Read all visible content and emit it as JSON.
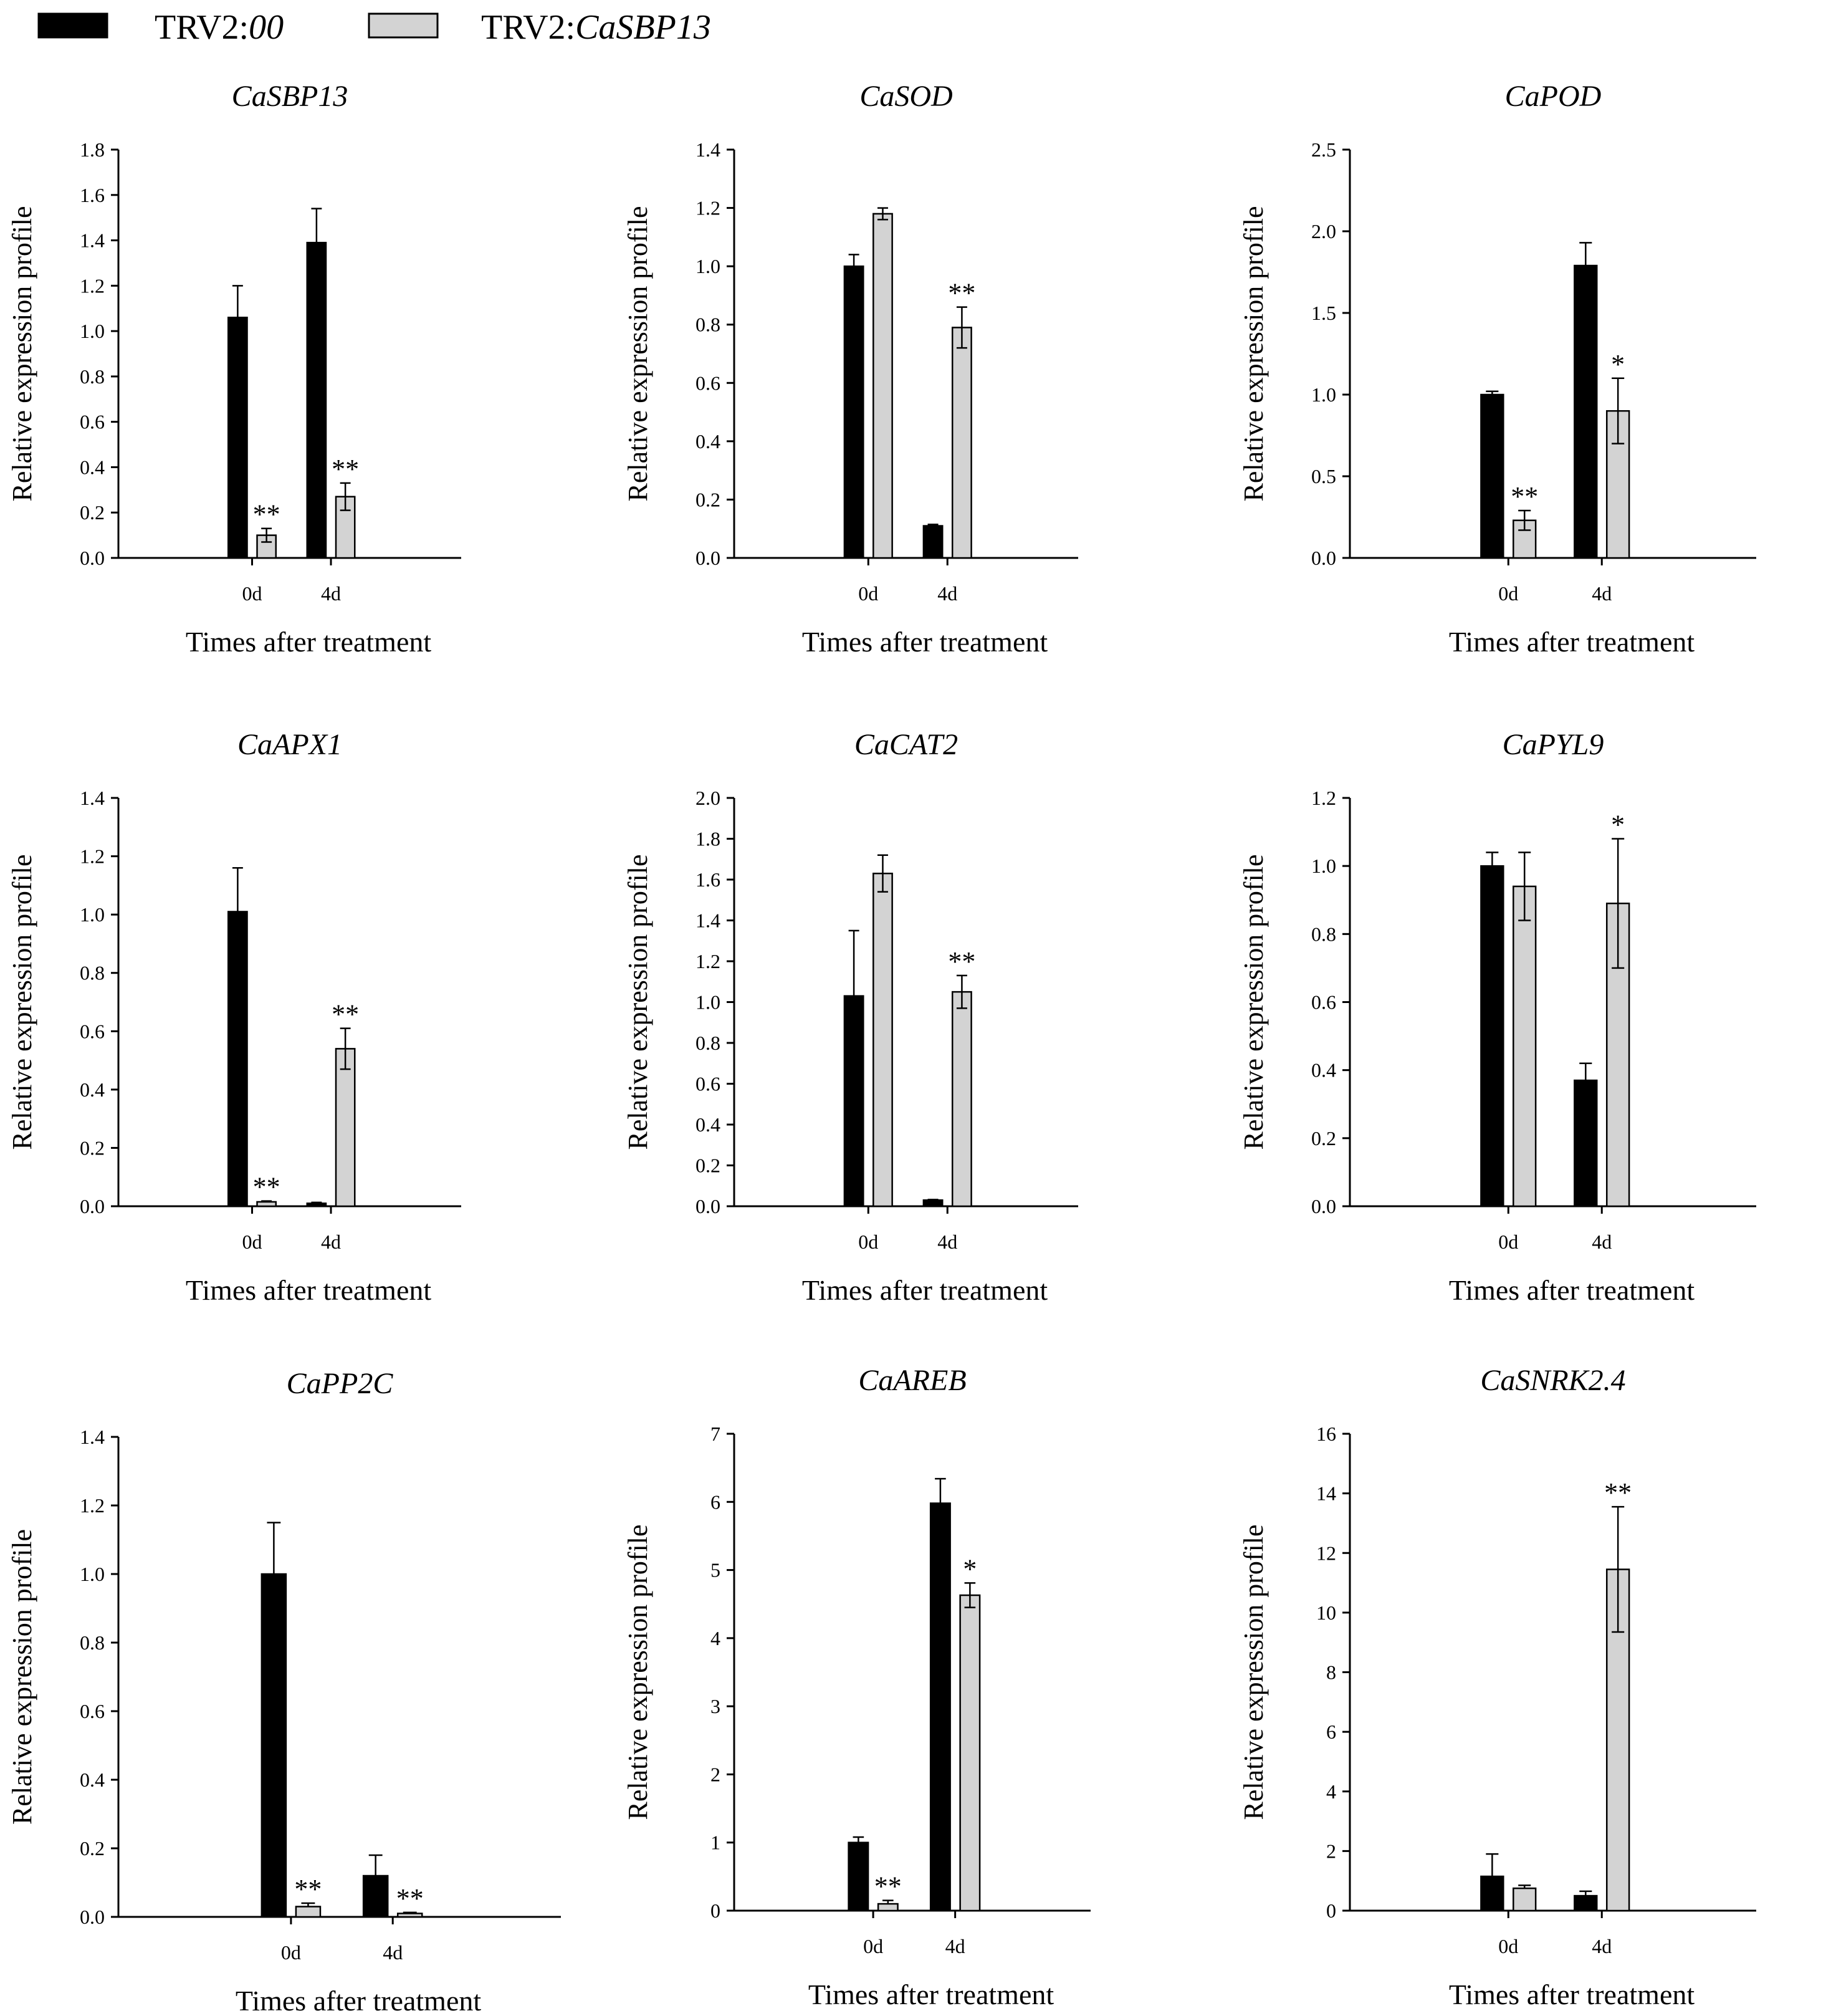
{
  "legend": {
    "items": [
      {
        "prefix": "TRV2:",
        "italic": "00",
        "color": "#000000"
      },
      {
        "prefix": "TRV2:",
        "italic": "CaSBP13",
        "color": "#d3d3d3"
      }
    ]
  },
  "colors": {
    "control": "#000000",
    "silenced": "#d3d3d3",
    "axis": "#000000"
  },
  "chart_data": [
    {
      "type": "bar",
      "title": "CaSBP13",
      "xlabel": "Times after treatment",
      "ylabel": "Relative expression profile",
      "categories": [
        "0d",
        "4d"
      ],
      "ylim": [
        0,
        1.8
      ],
      "yticks": [
        "0.0",
        "0.2",
        "0.4",
        "0.6",
        "0.8",
        "1.0",
        "1.2",
        "1.4",
        "1.6",
        "1.8"
      ],
      "series": [
        {
          "name": "TRV2:00",
          "values": [
            1.06,
            1.39
          ],
          "errors": [
            0.14,
            0.15
          ],
          "marks": [
            "",
            ""
          ]
        },
        {
          "name": "TRV2:CaSBP13",
          "values": [
            0.1,
            0.27
          ],
          "errors": [
            0.03,
            0.06
          ],
          "marks": [
            "**",
            "**"
          ]
        }
      ]
    },
    {
      "type": "bar",
      "title": "CaSOD",
      "xlabel": "Times after treatment",
      "ylabel": "Relative expression profile",
      "categories": [
        "0d",
        "4d"
      ],
      "ylim": [
        0,
        1.4
      ],
      "yticks": [
        "0.0",
        "0.2",
        "0.4",
        "0.6",
        "0.8",
        "1.0",
        "1.2",
        "1.4"
      ],
      "series": [
        {
          "name": "TRV2:00",
          "values": [
            1.0,
            0.11
          ],
          "errors": [
            0.04,
            0.005
          ],
          "marks": [
            "",
            ""
          ]
        },
        {
          "name": "TRV2:CaSBP13",
          "values": [
            1.18,
            0.79
          ],
          "errors": [
            0.02,
            0.07
          ],
          "marks": [
            "",
            "**"
          ]
        }
      ]
    },
    {
      "type": "bar",
      "title": "CaPOD",
      "xlabel": "Times after treatment",
      "ylabel": "Relative expression profile",
      "categories": [
        "0d",
        "4d"
      ],
      "ylim": [
        0,
        2.5
      ],
      "yticks": [
        "0.0",
        "0.5",
        "1.0",
        "1.5",
        "2.0",
        "2.5"
      ],
      "series": [
        {
          "name": "TRV2:00",
          "values": [
            1.0,
            1.79
          ],
          "errors": [
            0.02,
            0.14
          ],
          "marks": [
            "",
            ""
          ]
        },
        {
          "name": "TRV2:CaSBP13",
          "values": [
            0.23,
            0.9
          ],
          "errors": [
            0.06,
            0.2
          ],
          "marks": [
            "**",
            "*"
          ]
        }
      ]
    },
    {
      "type": "bar",
      "title": "CaAPX1",
      "xlabel": "Times after treatment",
      "ylabel": "Relative expression profile",
      "categories": [
        "0d",
        "4d"
      ],
      "ylim": [
        0,
        1.4
      ],
      "yticks": [
        "0.0",
        "0.2",
        "0.4",
        "0.6",
        "0.8",
        "1.0",
        "1.2",
        "1.4"
      ],
      "series": [
        {
          "name": "TRV2:00",
          "values": [
            1.01,
            0.01
          ],
          "errors": [
            0.15,
            0.003
          ],
          "marks": [
            "",
            ""
          ]
        },
        {
          "name": "TRV2:CaSBP13",
          "values": [
            0.015,
            0.54
          ],
          "errors": [
            0.003,
            0.07
          ],
          "marks": [
            "**",
            "**"
          ]
        }
      ]
    },
    {
      "type": "bar",
      "title": "CaCAT2",
      "xlabel": "Times after treatment",
      "ylabel": "Relative expression profile",
      "categories": [
        "0d",
        "4d"
      ],
      "ylim": [
        0,
        2.0
      ],
      "yticks": [
        "0.0",
        "0.2",
        "0.4",
        "0.6",
        "0.8",
        "1.0",
        "1.2",
        "1.4",
        "1.6",
        "1.8",
        "2.0"
      ],
      "series": [
        {
          "name": "TRV2:00",
          "values": [
            1.03,
            0.03
          ],
          "errors": [
            0.32,
            0.003
          ],
          "marks": [
            "",
            ""
          ]
        },
        {
          "name": "TRV2:CaSBP13",
          "values": [
            1.63,
            1.05
          ],
          "errors": [
            0.09,
            0.08
          ],
          "marks": [
            "",
            "**"
          ]
        }
      ]
    },
    {
      "type": "bar",
      "title": "CaPYL9",
      "xlabel": "Times after treatment",
      "ylabel": "Relative expression profile",
      "categories": [
        "0d",
        "4d"
      ],
      "ylim": [
        0,
        1.2
      ],
      "yticks": [
        "0.0",
        "0.2",
        "0.4",
        "0.6",
        "0.8",
        "1.0",
        "1.2"
      ],
      "series": [
        {
          "name": "TRV2:00",
          "values": [
            1.0,
            0.37
          ],
          "errors": [
            0.04,
            0.05
          ],
          "marks": [
            "",
            ""
          ]
        },
        {
          "name": "TRV2:CaSBP13",
          "values": [
            0.94,
            0.89
          ],
          "errors": [
            0.1,
            0.19
          ],
          "marks": [
            "",
            "*"
          ]
        }
      ]
    },
    {
      "type": "bar",
      "title": "CaPP2C",
      "xlabel": "Times after treatment",
      "ylabel": "Relative expression profile",
      "categories": [
        "0d",
        "4d"
      ],
      "ylim": [
        0,
        1.4
      ],
      "yticks": [
        "0.0",
        "0.2",
        "0.4",
        "0.6",
        "0.8",
        "1.0",
        "1.2",
        "1.4"
      ],
      "series": [
        {
          "name": "TRV2:00",
          "values": [
            1.0,
            0.12
          ],
          "errors": [
            0.15,
            0.06
          ],
          "marks": [
            "",
            ""
          ]
        },
        {
          "name": "TRV2:CaSBP13",
          "values": [
            0.03,
            0.01
          ],
          "errors": [
            0.01,
            0.003
          ],
          "marks": [
            "**",
            "**"
          ]
        }
      ]
    },
    {
      "type": "bar",
      "title": "CaAREB",
      "xlabel": "Times after treatment",
      "ylabel": "Relative expression profile",
      "categories": [
        "0d",
        "4d"
      ],
      "ylim": [
        0,
        7
      ],
      "yticks": [
        "0",
        "1",
        "2",
        "3",
        "4",
        "5",
        "6",
        "7"
      ],
      "series": [
        {
          "name": "TRV2:00",
          "values": [
            1.0,
            5.98
          ],
          "errors": [
            0.08,
            0.36
          ],
          "marks": [
            "",
            ""
          ]
        },
        {
          "name": "TRV2:CaSBP13",
          "values": [
            0.1,
            4.63
          ],
          "errors": [
            0.05,
            0.18
          ],
          "marks": [
            "**",
            "*"
          ]
        }
      ]
    },
    {
      "type": "bar",
      "title": "CaSNRK2.4",
      "xlabel": "Times after treatment",
      "ylabel": "Relative expression profile",
      "categories": [
        "0d",
        "4d"
      ],
      "ylim": [
        0,
        16
      ],
      "yticks": [
        "0",
        "2",
        "4",
        "6",
        "8",
        "10",
        "12",
        "14",
        "16"
      ],
      "series": [
        {
          "name": "TRV2:00",
          "values": [
            1.15,
            0.5
          ],
          "errors": [
            0.75,
            0.15
          ],
          "marks": [
            "",
            ""
          ]
        },
        {
          "name": "TRV2:CaSBP13",
          "values": [
            0.75,
            11.45
          ],
          "errors": [
            0.1,
            2.1
          ],
          "marks": [
            "",
            "**"
          ]
        }
      ]
    }
  ]
}
